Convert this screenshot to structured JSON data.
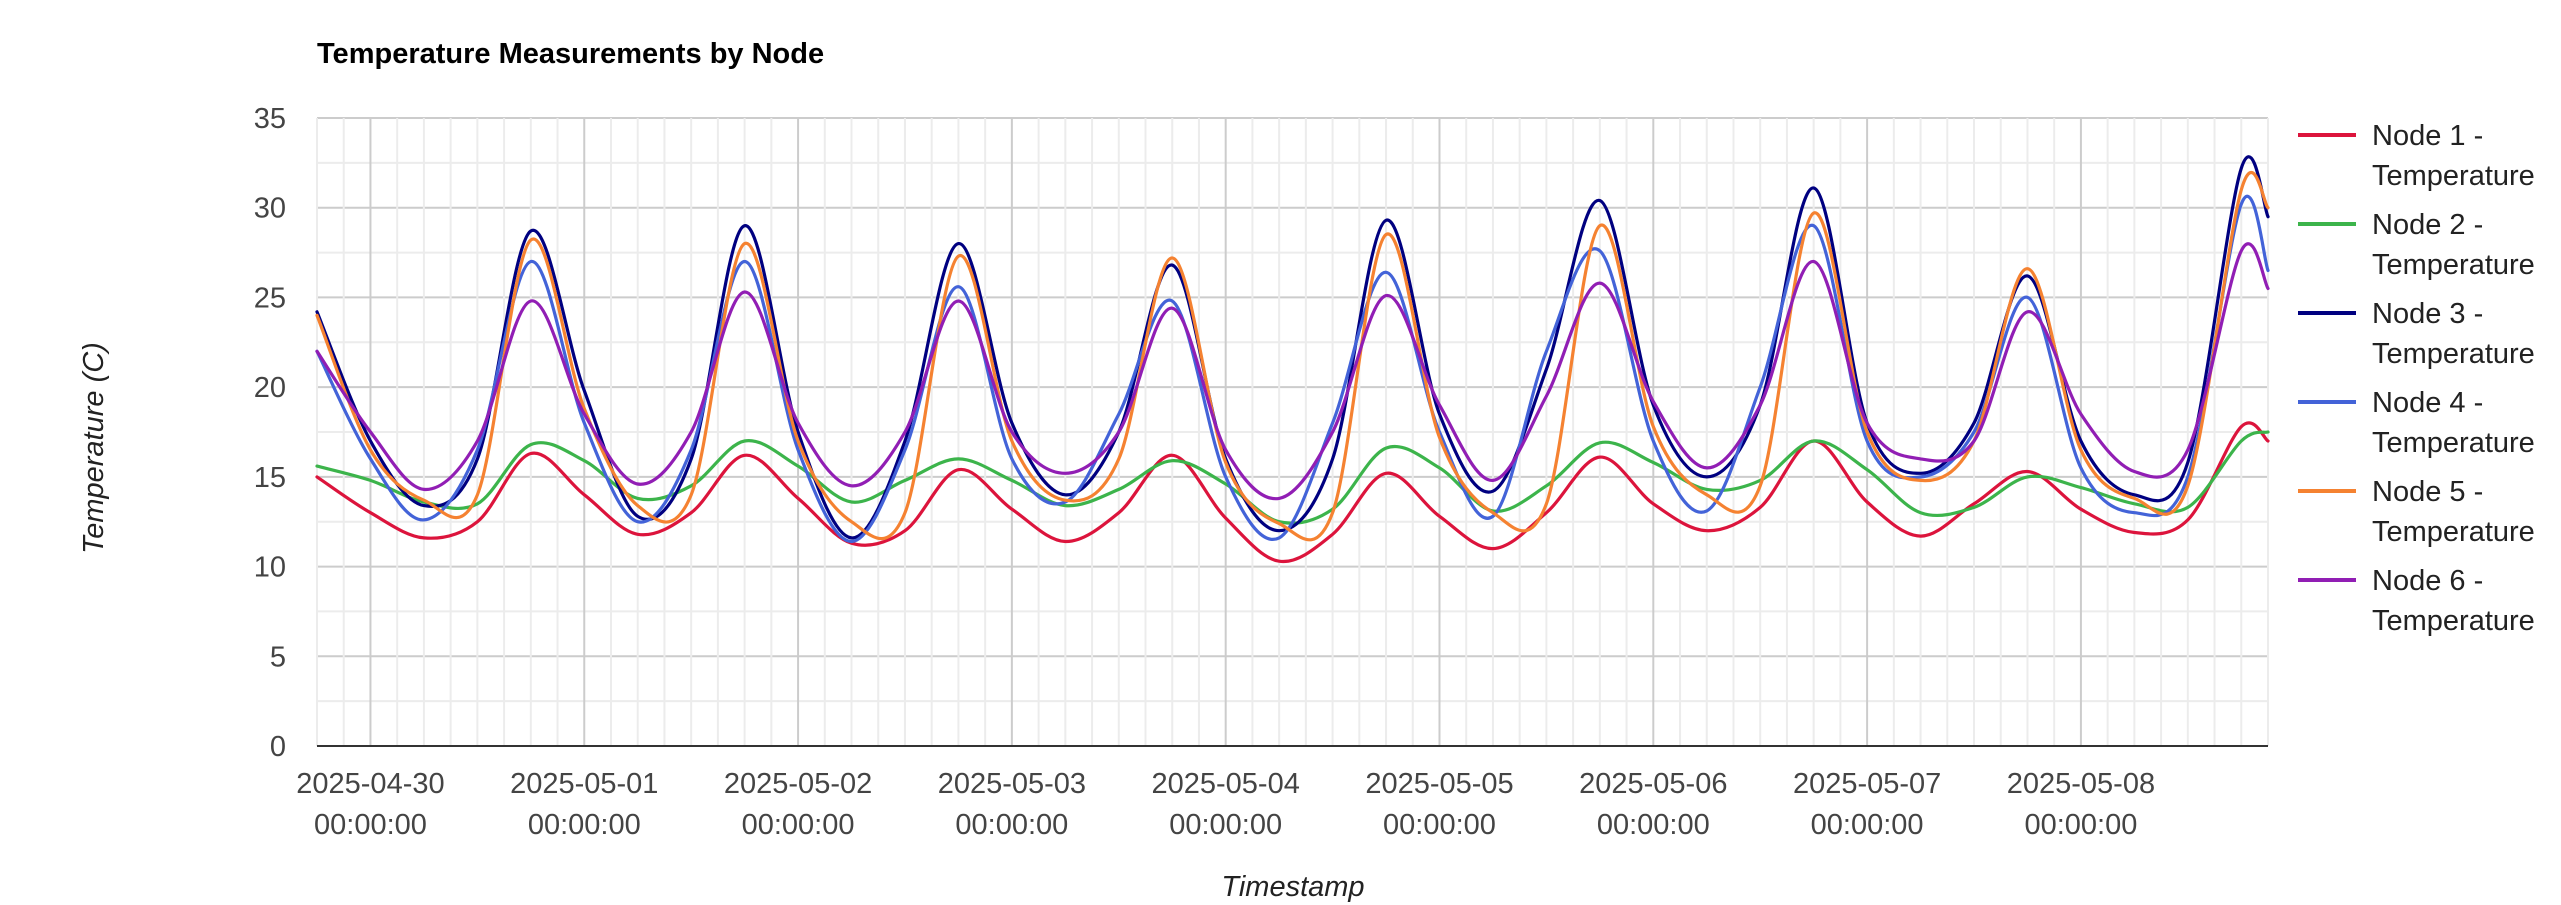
{
  "chart_data": {
    "type": "line",
    "title": "Temperature Measurements by Node",
    "xlabel": "Timestamp",
    "ylabel": "Temperature (C)",
    "ylim": [
      0,
      35
    ],
    "yticks": [
      "0",
      "5",
      "10",
      "15",
      "20",
      "25",
      "30",
      "35"
    ],
    "xlim": [
      "2025-04-29 18:00",
      "2025-05-08 21:00"
    ],
    "x_tick_labels": [
      {
        "date": "2025-04-30",
        "time": "00:00:00"
      },
      {
        "date": "2025-05-01",
        "time": "00:00:00"
      },
      {
        "date": "2025-05-02",
        "time": "00:00:00"
      },
      {
        "date": "2025-05-03",
        "time": "00:00:00"
      },
      {
        "date": "2025-05-04",
        "time": "00:00:00"
      },
      {
        "date": "2025-05-05",
        "time": "00:00:00"
      },
      {
        "date": "2025-05-06",
        "time": "00:00:00"
      },
      {
        "date": "2025-05-07",
        "time": "00:00:00"
      },
      {
        "date": "2025-05-08",
        "time": "00:00:00"
      }
    ],
    "grid": true,
    "legend_position": "right",
    "x": [
      "2025-04-29 18:00",
      "2025-04-30 00:00",
      "2025-04-30 06:00",
      "2025-04-30 12:00",
      "2025-04-30 18:00",
      "2025-05-01 00:00",
      "2025-05-01 06:00",
      "2025-05-01 12:00",
      "2025-05-01 18:00",
      "2025-05-02 00:00",
      "2025-05-02 06:00",
      "2025-05-02 12:00",
      "2025-05-02 18:00",
      "2025-05-03 00:00",
      "2025-05-03 06:00",
      "2025-05-03 12:00",
      "2025-05-03 18:00",
      "2025-05-04 00:00",
      "2025-05-04 06:00",
      "2025-05-04 12:00",
      "2025-05-04 18:00",
      "2025-05-05 00:00",
      "2025-05-05 06:00",
      "2025-05-05 12:00",
      "2025-05-05 18:00",
      "2025-05-06 00:00",
      "2025-05-06 06:00",
      "2025-05-06 12:00",
      "2025-05-06 18:00",
      "2025-05-07 00:00",
      "2025-05-07 06:00",
      "2025-05-07 12:00",
      "2025-05-07 18:00",
      "2025-05-08 00:00",
      "2025-05-08 06:00",
      "2025-05-08 12:00",
      "2025-05-08 18:00",
      "2025-05-08 21:00"
    ],
    "series": [
      {
        "name": "Node 1 - Temperature",
        "color": "#dc143c",
        "values": [
          15.0,
          13.0,
          11.6,
          12.5,
          16.3,
          14.0,
          11.8,
          13.0,
          16.2,
          13.8,
          11.3,
          12.0,
          15.4,
          13.2,
          11.4,
          13.0,
          16.2,
          12.7,
          10.3,
          11.8,
          15.2,
          12.8,
          11.0,
          13.0,
          16.1,
          13.5,
          12.0,
          13.3,
          17.0,
          13.6,
          11.7,
          13.5,
          15.3,
          13.2,
          11.9,
          12.6,
          17.8,
          17.0
        ]
      },
      {
        "name": "Node 2 - Temperature",
        "color": "#3cb44b",
        "values": [
          15.6,
          14.8,
          13.6,
          13.5,
          16.8,
          15.9,
          13.8,
          14.5,
          17.0,
          15.6,
          13.6,
          14.8,
          16.0,
          14.8,
          13.4,
          14.3,
          15.9,
          14.6,
          12.5,
          13.2,
          16.6,
          15.5,
          13.1,
          14.5,
          16.9,
          15.8,
          14.3,
          14.8,
          17.0,
          15.4,
          13.0,
          13.3,
          15.0,
          14.4,
          13.5,
          13.3,
          17.0,
          17.5
        ]
      },
      {
        "name": "Node 3 - Temperature",
        "color": "#000080",
        "values": [
          24.2,
          17.0,
          13.4,
          16.0,
          28.7,
          19.8,
          12.8,
          16.0,
          29.0,
          17.5,
          11.6,
          17.0,
          28.0,
          18.0,
          14.0,
          17.5,
          26.8,
          16.0,
          12.0,
          16.0,
          29.3,
          18.5,
          14.2,
          21.0,
          30.4,
          19.0,
          15.0,
          19.0,
          31.1,
          18.0,
          15.2,
          18.0,
          26.2,
          17.0,
          14.0,
          15.8,
          32.2,
          29.5
        ]
      },
      {
        "name": "Node 4 - Temperature",
        "color": "#4363d8",
        "values": [
          22.0,
          16.0,
          12.6,
          16.5,
          27.0,
          18.0,
          12.5,
          16.5,
          27.0,
          16.5,
          11.4,
          16.5,
          25.6,
          16.0,
          13.6,
          18.5,
          24.8,
          15.0,
          11.6,
          18.0,
          26.4,
          17.5,
          12.8,
          22.0,
          27.6,
          17.0,
          13.1,
          20.0,
          29.0,
          17.0,
          15.0,
          17.5,
          25.0,
          15.5,
          13.0,
          15.0,
          30.2,
          26.5
        ]
      },
      {
        "name": "Node 5 - Temperature",
        "color": "#f58231",
        "values": [
          24.0,
          16.5,
          13.7,
          14.0,
          28.2,
          18.8,
          13.4,
          14.0,
          28.0,
          17.0,
          12.5,
          13.0,
          27.3,
          17.0,
          13.7,
          16.0,
          27.2,
          15.8,
          12.4,
          13.0,
          28.5,
          17.2,
          13.0,
          13.5,
          29.0,
          17.8,
          14.0,
          14.5,
          29.7,
          17.5,
          14.8,
          17.0,
          26.6,
          16.5,
          13.8,
          14.5,
          31.0,
          30.0
        ]
      },
      {
        "name": "Node 6 - Temperature",
        "color": "#911eb4",
        "values": [
          22.0,
          17.5,
          14.3,
          17.0,
          24.8,
          18.5,
          14.6,
          17.5,
          25.3,
          18.0,
          14.5,
          17.5,
          24.8,
          17.5,
          15.2,
          17.5,
          24.4,
          16.5,
          13.8,
          17.5,
          25.1,
          19.0,
          14.8,
          19.5,
          25.8,
          19.2,
          15.5,
          19.0,
          27.0,
          18.0,
          16.0,
          17.0,
          24.2,
          18.5,
          15.3,
          16.5,
          27.6,
          25.5
        ]
      }
    ]
  }
}
